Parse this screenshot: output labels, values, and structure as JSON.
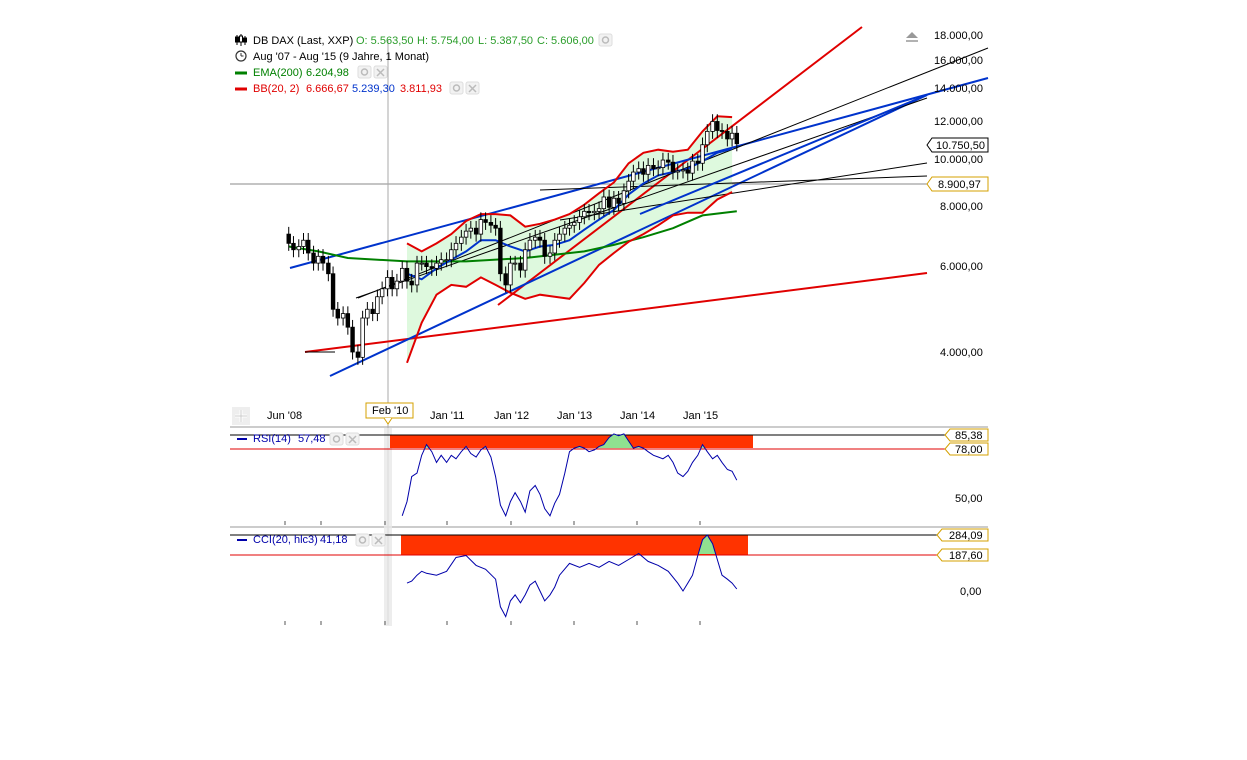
{
  "main_legend": {
    "instrument": {
      "name": "DB DAX (Last, XXP)",
      "open": "O: 5.563,50",
      "high": "H: 5.754,00",
      "low": "L: 5.387,50",
      "close": "C: 5.606,00"
    },
    "period": "Aug '07 - Aug '15 (9 Jahre, 1 Monat)",
    "ema": {
      "label": "EMA(200)",
      "value": "6.204,98"
    },
    "bb": {
      "label": "BB(20, 2)",
      "upper": "6.666,67",
      "middle": "5.239,30",
      "lower": "3.811,93"
    }
  },
  "rsi_legend": {
    "label": "RSI(14)",
    "value": "57,48"
  },
  "cci_legend": {
    "label": "CCI(20, hlc3)",
    "value": "41,18"
  },
  "colors": {
    "price": "#000000",
    "ema": "#008000",
    "bb_outer": "#e00000",
    "bb_mid": "#0033cc",
    "grid": "#dddddd",
    "band_fill": "#c8f5c8",
    "zone": "#ff3300",
    "osc": "#0000aa"
  },
  "icons": [
    "candlestick-icon",
    "clock-icon",
    "gear-icon",
    "close-icon",
    "scroll-up-icon",
    "add-panel-icon"
  ],
  "chart_data": [
    {
      "type": "candlestick",
      "title": "DB DAX (Last, XXP)",
      "x_ticks": [
        "Jun '08",
        "Feb '10",
        "Jan '11",
        "Jan '12",
        "Jan '13",
        "Jan '14",
        "Jan '15"
      ],
      "y_ticks": [
        "18.000,00",
        "16.000,00",
        "14.000,00",
        "12.000,00",
        "10.000,00",
        "8.000,00",
        "6.000,00",
        "4.000,00"
      ],
      "y_range": [
        3300,
        18500
      ],
      "log_scale": true,
      "crosshair": {
        "date": "Feb '10",
        "price": "8.900,97"
      },
      "last_price": "10.750,50",
      "x_range": [
        2007.92,
        2015.6
      ],
      "closes": [
        [
          2007.92,
          7000
        ],
        [
          2008.0,
          6700
        ],
        [
          2008.08,
          6500
        ],
        [
          2008.17,
          6600
        ],
        [
          2008.25,
          6800
        ],
        [
          2008.33,
          6400
        ],
        [
          2008.42,
          6100
        ],
        [
          2008.5,
          6300
        ],
        [
          2008.58,
          6100
        ],
        [
          2008.67,
          5800
        ],
        [
          2008.75,
          4900
        ],
        [
          2008.83,
          4700
        ],
        [
          2008.92,
          4800
        ],
        [
          2009.0,
          4500
        ],
        [
          2009.08,
          4000
        ],
        [
          2009.17,
          3900
        ],
        [
          2009.25,
          4700
        ],
        [
          2009.33,
          4900
        ],
        [
          2009.42,
          4800
        ],
        [
          2009.5,
          5200
        ],
        [
          2009.58,
          5400
        ],
        [
          2009.67,
          5700
        ],
        [
          2009.75,
          5400
        ],
        [
          2009.83,
          5600
        ],
        [
          2009.92,
          5950
        ],
        [
          2010.0,
          5600
        ],
        [
          2010.08,
          5500
        ],
        [
          2010.17,
          6100
        ],
        [
          2010.25,
          6100
        ],
        [
          2010.33,
          6000
        ],
        [
          2010.42,
          5950
        ],
        [
          2010.5,
          6100
        ],
        [
          2010.58,
          6200
        ],
        [
          2010.67,
          6200
        ],
        [
          2010.75,
          6500
        ],
        [
          2010.83,
          6700
        ],
        [
          2010.92,
          6900
        ],
        [
          2011.0,
          7100
        ],
        [
          2011.08,
          7200
        ],
        [
          2011.17,
          7000
        ],
        [
          2011.25,
          7500
        ],
        [
          2011.33,
          7400
        ],
        [
          2011.42,
          7300
        ],
        [
          2011.5,
          7200
        ],
        [
          2011.58,
          5800
        ],
        [
          2011.67,
          5500
        ],
        [
          2011.75,
          6100
        ],
        [
          2011.83,
          6100
        ],
        [
          2011.92,
          5900
        ],
        [
          2012.0,
          6500
        ],
        [
          2012.08,
          6800
        ],
        [
          2012.17,
          6900
        ],
        [
          2012.25,
          6800
        ],
        [
          2012.33,
          6300
        ],
        [
          2012.42,
          6400
        ],
        [
          2012.5,
          6800
        ],
        [
          2012.58,
          7000
        ],
        [
          2012.67,
          7200
        ],
        [
          2012.75,
          7300
        ],
        [
          2012.83,
          7400
        ],
        [
          2012.92,
          7600
        ],
        [
          2013.0,
          7800
        ],
        [
          2013.08,
          7750
        ],
        [
          2013.17,
          7800
        ],
        [
          2013.25,
          7900
        ],
        [
          2013.33,
          8350
        ],
        [
          2013.42,
          7950
        ],
        [
          2013.5,
          8300
        ],
        [
          2013.58,
          8100
        ],
        [
          2013.67,
          8600
        ],
        [
          2013.75,
          9000
        ],
        [
          2013.83,
          9400
        ],
        [
          2013.92,
          9550
        ],
        [
          2014.0,
          9300
        ],
        [
          2014.08,
          9700
        ],
        [
          2014.17,
          9550
        ],
        [
          2014.25,
          9600
        ],
        [
          2014.33,
          9950
        ],
        [
          2014.42,
          9850
        ],
        [
          2014.5,
          9400
        ],
        [
          2014.58,
          9450
        ],
        [
          2014.67,
          9500
        ],
        [
          2014.75,
          9350
        ],
        [
          2014.83,
          9900
        ],
        [
          2014.92,
          9800
        ],
        [
          2015.0,
          10700
        ],
        [
          2015.08,
          11400
        ],
        [
          2015.17,
          11950
        ],
        [
          2015.25,
          11450
        ],
        [
          2015.33,
          11400
        ],
        [
          2015.42,
          11000
        ],
        [
          2015.5,
          11300
        ],
        [
          2015.58,
          10750
        ]
      ],
      "ema_200": [
        [
          2008.0,
          6600
        ],
        [
          2008.5,
          6450
        ],
        [
          2009.0,
          6250
        ],
        [
          2010.0,
          6150
        ],
        [
          2011.0,
          6150
        ],
        [
          2012.0,
          6250
        ],
        [
          2013.0,
          6450
        ],
        [
          2013.5,
          6650
        ],
        [
          2014.0,
          6900
        ],
        [
          2014.5,
          7200
        ],
        [
          2015.0,
          7650
        ],
        [
          2015.58,
          7800
        ]
      ],
      "bb_upper": [
        [
          2010.0,
          6700
        ],
        [
          2010.25,
          6450
        ],
        [
          2010.5,
          6700
        ],
        [
          2010.75,
          7000
        ],
        [
          2011.0,
          7450
        ],
        [
          2011.25,
          7700
        ],
        [
          2011.5,
          7700
        ],
        [
          2011.75,
          7650
        ],
        [
          2012.0,
          7250
        ],
        [
          2012.25,
          7350
        ],
        [
          2012.5,
          7500
        ],
        [
          2012.75,
          7700
        ],
        [
          2013.0,
          8050
        ],
        [
          2013.25,
          8500
        ],
        [
          2013.5,
          8950
        ],
        [
          2013.75,
          9800
        ],
        [
          2014.0,
          10300
        ],
        [
          2014.25,
          10450
        ],
        [
          2014.5,
          10350
        ],
        [
          2014.75,
          10450
        ],
        [
          2015.0,
          11400
        ],
        [
          2015.25,
          12250
        ],
        [
          2015.5,
          12200
        ]
      ],
      "bb_middle": [
        [
          2010.0,
          5800
        ],
        [
          2010.25,
          5650
        ],
        [
          2010.5,
          5950
        ],
        [
          2010.75,
          6200
        ],
        [
          2011.0,
          6450
        ],
        [
          2011.25,
          6800
        ],
        [
          2011.5,
          6800
        ],
        [
          2011.75,
          6600
        ],
        [
          2012.0,
          6450
        ],
        [
          2012.25,
          6600
        ],
        [
          2012.5,
          6650
        ],
        [
          2012.75,
          6800
        ],
        [
          2013.0,
          7150
        ],
        [
          2013.25,
          7500
        ],
        [
          2013.5,
          7850
        ],
        [
          2013.75,
          8450
        ],
        [
          2014.0,
          8900
        ],
        [
          2014.25,
          9250
        ],
        [
          2014.5,
          9400
        ],
        [
          2014.75,
          9550
        ],
        [
          2015.0,
          9900
        ],
        [
          2015.25,
          10300
        ],
        [
          2015.5,
          10500
        ]
      ],
      "bb_lower": [
        [
          2010.0,
          3800
        ],
        [
          2010.25,
          4600
        ],
        [
          2010.5,
          5250
        ],
        [
          2010.75,
          5500
        ],
        [
          2011.0,
          5450
        ],
        [
          2011.25,
          5700
        ],
        [
          2011.5,
          5500
        ],
        [
          2011.75,
          5300
        ],
        [
          2012.0,
          5150
        ],
        [
          2012.25,
          5250
        ],
        [
          2012.5,
          5200
        ],
        [
          2012.75,
          5150
        ],
        [
          2013.0,
          5550
        ],
        [
          2013.25,
          6050
        ],
        [
          2013.5,
          6400
        ],
        [
          2013.75,
          6750
        ],
        [
          2014.0,
          7000
        ],
        [
          2014.25,
          7300
        ],
        [
          2014.5,
          7650
        ],
        [
          2014.75,
          7750
        ],
        [
          2015.0,
          7750
        ],
        [
          2015.25,
          8250
        ],
        [
          2015.5,
          8550
        ]
      ]
    },
    {
      "type": "line",
      "title": "RSI(14)",
      "x_range": [
        2007.92,
        2015.6
      ],
      "y_ticks": [
        "50,00"
      ],
      "levels": [
        "85,38",
        "78,00"
      ],
      "values": [
        [
          2009.92,
          40
        ],
        [
          2010.0,
          48
        ],
        [
          2010.08,
          62
        ],
        [
          2010.17,
          64
        ],
        [
          2010.25,
          74
        ],
        [
          2010.33,
          80
        ],
        [
          2010.42,
          76
        ],
        [
          2010.5,
          70
        ],
        [
          2010.58,
          74
        ],
        [
          2010.67,
          70
        ],
        [
          2010.75,
          74
        ],
        [
          2010.83,
          72
        ],
        [
          2010.92,
          76
        ],
        [
          2011.0,
          79
        ],
        [
          2011.08,
          75
        ],
        [
          2011.17,
          73
        ],
        [
          2011.25,
          77
        ],
        [
          2011.33,
          79
        ],
        [
          2011.42,
          73
        ],
        [
          2011.5,
          62
        ],
        [
          2011.58,
          46
        ],
        [
          2011.67,
          40
        ],
        [
          2011.75,
          48
        ],
        [
          2011.83,
          53
        ],
        [
          2011.92,
          48
        ],
        [
          2012.0,
          42
        ],
        [
          2012.08,
          54
        ],
        [
          2012.17,
          57
        ],
        [
          2012.25,
          52
        ],
        [
          2012.33,
          44
        ],
        [
          2012.42,
          40
        ],
        [
          2012.5,
          47
        ],
        [
          2012.58,
          52
        ],
        [
          2012.67,
          64
        ],
        [
          2012.75,
          76
        ],
        [
          2012.83,
          78
        ],
        [
          2012.92,
          79
        ],
        [
          2013.0,
          78
        ],
        [
          2013.08,
          76
        ],
        [
          2013.17,
          77
        ],
        [
          2013.25,
          79
        ],
        [
          2013.33,
          80
        ],
        [
          2013.42,
          84
        ],
        [
          2013.5,
          86
        ],
        [
          2013.58,
          85
        ],
        [
          2013.67,
          86
        ],
        [
          2013.75,
          82
        ],
        [
          2013.83,
          78
        ],
        [
          2013.92,
          79
        ],
        [
          2014.0,
          78
        ],
        [
          2014.08,
          76
        ],
        [
          2014.17,
          74
        ],
        [
          2014.25,
          73
        ],
        [
          2014.33,
          72
        ],
        [
          2014.42,
          74
        ],
        [
          2014.5,
          70
        ],
        [
          2014.58,
          64
        ],
        [
          2014.67,
          62
        ],
        [
          2014.75,
          65
        ],
        [
          2014.83,
          70
        ],
        [
          2014.92,
          74
        ],
        [
          2015.0,
          80
        ],
        [
          2015.08,
          76
        ],
        [
          2015.17,
          72
        ],
        [
          2015.25,
          74
        ],
        [
          2015.33,
          70
        ],
        [
          2015.42,
          66
        ],
        [
          2015.5,
          65
        ],
        [
          2015.58,
          60
        ]
      ]
    },
    {
      "type": "line",
      "title": "CCI(20, hlc3)",
      "x_range": [
        2007.92,
        2015.6
      ],
      "y_ticks": [
        "0,00"
      ],
      "levels": [
        "284,09",
        "187,60"
      ],
      "values": [
        [
          2010.0,
          40
        ],
        [
          2010.08,
          50
        ],
        [
          2010.17,
          80
        ],
        [
          2010.25,
          100
        ],
        [
          2010.33,
          90
        ],
        [
          2010.5,
          80
        ],
        [
          2010.67,
          100
        ],
        [
          2010.83,
          170
        ],
        [
          2011.0,
          180
        ],
        [
          2011.17,
          130
        ],
        [
          2011.33,
          110
        ],
        [
          2011.5,
          60
        ],
        [
          2011.58,
          -80
        ],
        [
          2011.67,
          -130
        ],
        [
          2011.75,
          -50
        ],
        [
          2011.83,
          -20
        ],
        [
          2011.92,
          -60
        ],
        [
          2012.0,
          -20
        ],
        [
          2012.08,
          30
        ],
        [
          2012.17,
          50
        ],
        [
          2012.25,
          0
        ],
        [
          2012.33,
          -50
        ],
        [
          2012.42,
          -20
        ],
        [
          2012.5,
          20
        ],
        [
          2012.58,
          80
        ],
        [
          2012.75,
          140
        ],
        [
          2012.92,
          120
        ],
        [
          2013.08,
          140
        ],
        [
          2013.25,
          120
        ],
        [
          2013.42,
          150
        ],
        [
          2013.58,
          130
        ],
        [
          2013.75,
          160
        ],
        [
          2013.92,
          190
        ],
        [
          2014.08,
          150
        ],
        [
          2014.25,
          130
        ],
        [
          2014.42,
          100
        ],
        [
          2014.58,
          40
        ],
        [
          2014.67,
          0
        ],
        [
          2014.75,
          40
        ],
        [
          2014.83,
          80
        ],
        [
          2014.92,
          180
        ],
        [
          2015.0,
          260
        ],
        [
          2015.08,
          284
        ],
        [
          2015.17,
          240
        ],
        [
          2015.25,
          160
        ],
        [
          2015.33,
          80
        ],
        [
          2015.42,
          60
        ],
        [
          2015.5,
          40
        ],
        [
          2015.58,
          10
        ]
      ]
    }
  ]
}
